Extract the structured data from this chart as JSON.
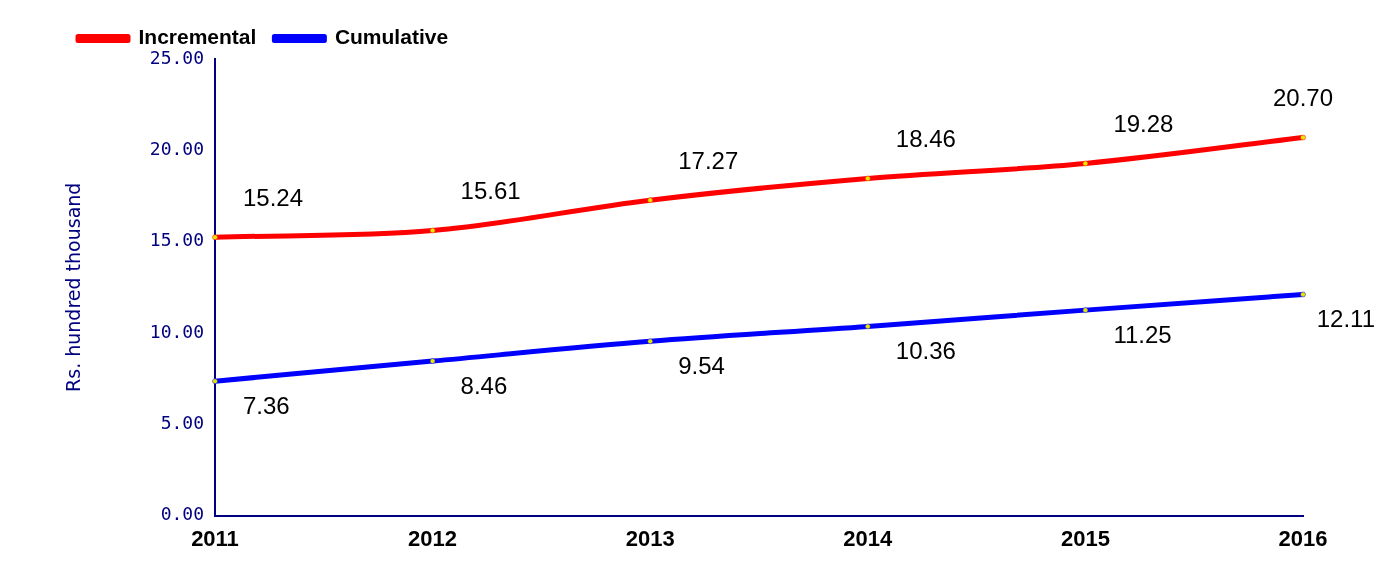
{
  "chart_data": {
    "type": "line",
    "ylabel": "Rs. hundred thousand",
    "categories": [
      "2011",
      "2012",
      "2013",
      "2014",
      "2015",
      "2016"
    ],
    "series": [
      {
        "name": "Incremental",
        "color": "#ff0000",
        "values": [
          15.24,
          15.61,
          17.27,
          18.46,
          19.28,
          20.7
        ],
        "value_labels": [
          "15.24",
          "15.61",
          "17.27",
          "18.46",
          "19.28",
          "20.70"
        ]
      },
      {
        "name": "Cumulative",
        "color": "#0000ff",
        "values": [
          7.36,
          8.46,
          9.54,
          10.36,
          11.25,
          12.11
        ],
        "value_labels": [
          "7.36",
          "8.46",
          "9.54",
          "10.36",
          "11.25",
          "12.11"
        ]
      }
    ],
    "ylim": [
      0,
      25
    ],
    "yticks": [
      {
        "value": 0,
        "label": "0.00"
      },
      {
        "value": 5,
        "label": "5.00"
      },
      {
        "value": 10,
        "label": "10.00"
      },
      {
        "value": 15,
        "label": "15.00"
      },
      {
        "value": 20,
        "label": "20.00"
      },
      {
        "value": 25,
        "label": "25.00"
      }
    ],
    "legend": "top",
    "marker": "circle",
    "line_style": "solid"
  }
}
